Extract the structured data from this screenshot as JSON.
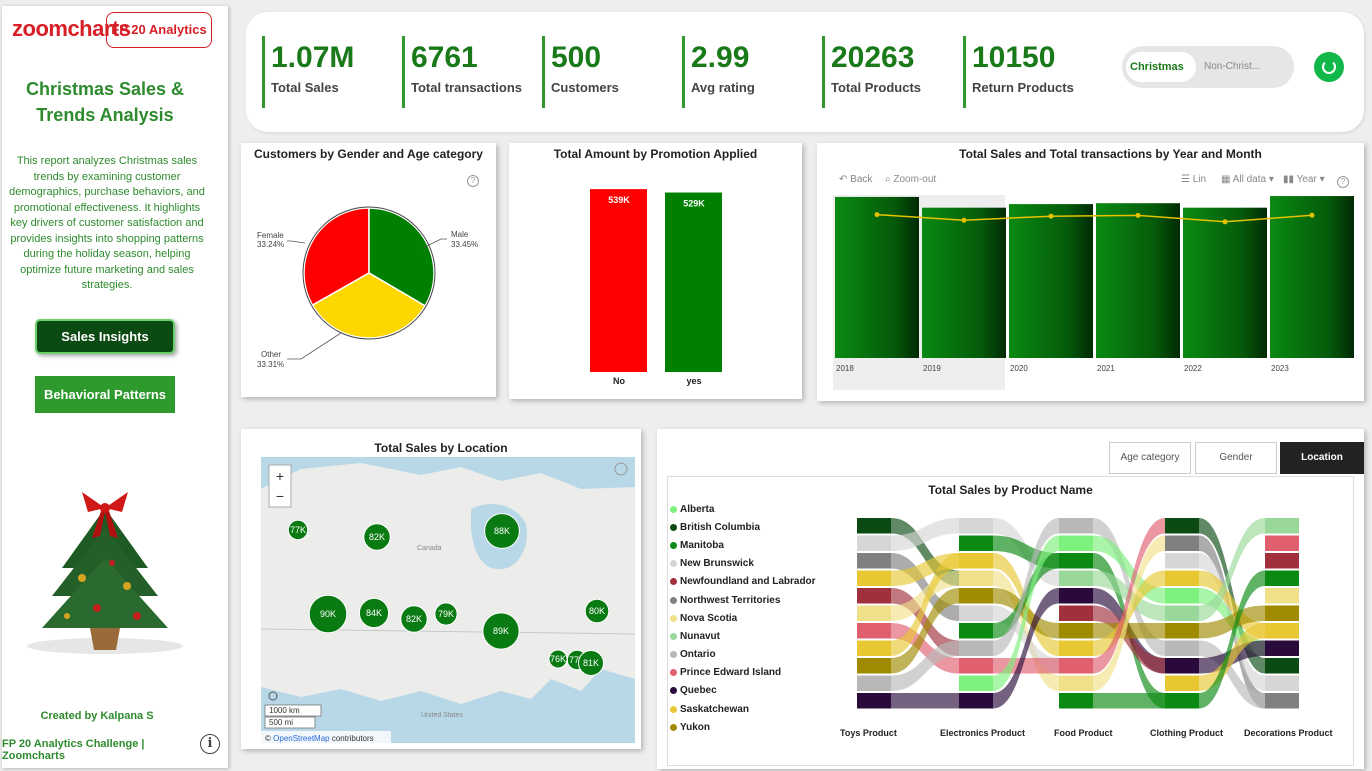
{
  "sidebar": {
    "logo_text": "zoomcharts",
    "badge": "FP 20 Analytics",
    "title": "Christmas Sales & Trends Analysis",
    "description": "This report analyzes Christmas sales trends by examining customer demographics, purchase behaviors, and promotional effectiveness. It highlights key drivers of customer satisfaction and provides insights into shopping patterns during the holiday season, helping optimize future marketing and sales strategies.",
    "btn_insights": "Sales Insights",
    "btn_behavior": "Behavioral Patterns",
    "created_by": "Created by Kalpana S",
    "footer": "FP 20 Analytics Challenge | Zoomcharts",
    "info_glyph": "i"
  },
  "kpis": [
    {
      "value": "1.07M",
      "label": "Total Sales"
    },
    {
      "value": "6761",
      "label": "Total transactions"
    },
    {
      "value": "500",
      "label": "Customers"
    },
    {
      "value": "2.99",
      "label": "Avg rating"
    },
    {
      "value": "20263",
      "label": "Total Products"
    },
    {
      "value": "10150",
      "label": "Return Products"
    }
  ],
  "toggle": {
    "on": "Christmas",
    "off": "Non-Christ..."
  },
  "colors": {
    "accent": "#1a7a1a",
    "red": "#ff0000",
    "green": "#008000",
    "yellow": "#ffd700",
    "dark_green": "#0b4a12"
  },
  "chart_data": [
    {
      "type": "pie",
      "title": "Customers by Gender and Age category",
      "slices": [
        {
          "label": "Female",
          "pct_text": "33.24%",
          "value": 33.24,
          "color": "#ff0000"
        },
        {
          "label": "Male",
          "pct_text": "33.45%",
          "value": 33.45,
          "color": "#008000"
        },
        {
          "label": "Other",
          "pct_text": "33.31%",
          "value": 33.31,
          "color": "#ffd700"
        }
      ]
    },
    {
      "type": "bar",
      "title": "Total Amount by Promotion Applied",
      "categories": [
        "No",
        "yes"
      ],
      "values": [
        539,
        529
      ],
      "value_labels": [
        "539K",
        "529K"
      ],
      "colors": [
        "#ff0000",
        "#008000"
      ],
      "ylim": [
        0,
        560
      ]
    },
    {
      "type": "bar",
      "title": "Total Sales and Total transactions by Year and Month",
      "categories": [
        "2018",
        "2019",
        "2020",
        "2021",
        "2022",
        "2023"
      ],
      "bar_values": [
        180,
        168,
        172,
        173,
        168,
        181
      ],
      "line_values": [
        1150,
        1115,
        1140,
        1145,
        1105,
        1146
      ],
      "ylim": [
        0,
        190
      ],
      "controls": {
        "back": "Back",
        "zoom": "Zoom-out",
        "scale": "Lin",
        "filter": "All data",
        "period": "Year"
      }
    },
    {
      "type": "map",
      "title": "Total Sales by Location",
      "region_label": "Canada",
      "country_label": "United States",
      "scale_km": "1000 km",
      "scale_mi": "500 mi",
      "attribution_prefix": "©",
      "attribution_link": "OpenStreetMap",
      "attribution_suffix": "contributors",
      "zoom_in": "+",
      "zoom_out": "−",
      "bubbles": [
        {
          "label": "77K",
          "value": 77
        },
        {
          "label": "82K",
          "value": 82
        },
        {
          "label": "88K",
          "value": 88
        },
        {
          "label": "90K",
          "value": 90
        },
        {
          "label": "84K",
          "value": 84
        },
        {
          "label": "82K",
          "value": 82
        },
        {
          "label": "79K",
          "value": 79
        },
        {
          "label": "89K",
          "value": 89
        },
        {
          "label": "80K",
          "value": 80
        },
        {
          "label": "76K",
          "value": 76
        },
        {
          "label": "77K",
          "value": 77
        },
        {
          "label": "81K",
          "value": 81
        }
      ]
    },
    {
      "type": "sankey",
      "title": "Total Sales by Product Name",
      "tabs": [
        "Age category",
        "Gender",
        "Location"
      ],
      "active_tab": "Location",
      "products": [
        "Toys Product",
        "Electronics Product",
        "Food Product",
        "Clothing Product",
        "Decorations Product"
      ],
      "legend": [
        {
          "name": "Alberta",
          "color": "#7ef07e"
        },
        {
          "name": "British Columbia",
          "color": "#0b4a12"
        },
        {
          "name": "Manitoba",
          "color": "#0a8a12"
        },
        {
          "name": "New Brunswick",
          "color": "#d6d6d6"
        },
        {
          "name": "Newfoundland and Labrador",
          "color": "#a0303c"
        },
        {
          "name": "Northwest Territories",
          "color": "#808080"
        },
        {
          "name": "Nova Scotia",
          "color": "#f0e08a"
        },
        {
          "name": "Nunavut",
          "color": "#9ad89a"
        },
        {
          "name": "Ontario",
          "color": "#b8b8b8"
        },
        {
          "name": "Prince Edward Island",
          "color": "#e06070"
        },
        {
          "name": "Quebec",
          "color": "#2a0a3a"
        },
        {
          "name": "Saskatchewan",
          "color": "#e8c832"
        },
        {
          "name": "Yukon",
          "color": "#a08a00"
        }
      ]
    }
  ]
}
